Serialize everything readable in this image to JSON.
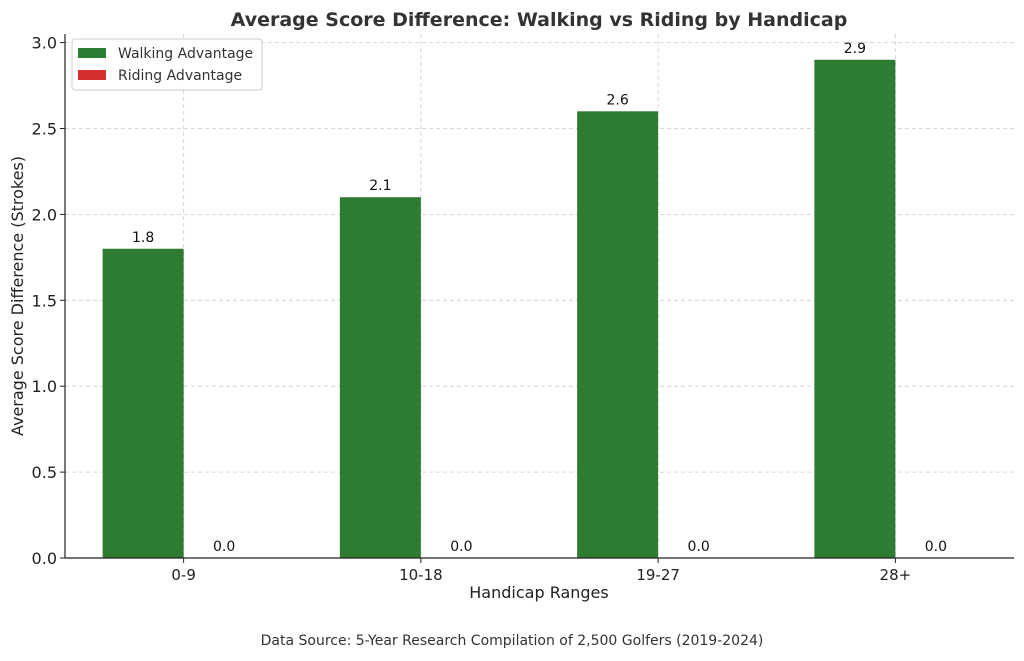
{
  "chart_data": {
    "type": "bar",
    "title": "Average Score Difference: Walking vs Riding by Handicap",
    "xlabel": "Handicap Ranges",
    "ylabel": "Average Score Difference (Strokes)",
    "categories": [
      "0-9",
      "10-18",
      "19-27",
      "28+"
    ],
    "series": [
      {
        "name": "Walking Advantage",
        "values": [
          1.8,
          2.1,
          2.6,
          2.9
        ],
        "color": "#2e7b32"
      },
      {
        "name": "Riding Advantage",
        "values": [
          0.0,
          0.0,
          0.0,
          0.0
        ],
        "color": "#d32f2f"
      }
    ],
    "ylim": [
      0,
      3.05
    ],
    "yticks": [
      "0.0",
      "0.5",
      "1.0",
      "1.5",
      "2.0",
      "2.5",
      "3.0"
    ],
    "grid": true,
    "legend_position": "top-left",
    "data_labels": true
  },
  "footer": {
    "source": "Data Source: 5-Year Research Compilation of 2,500 Golfers (2019-2024)"
  }
}
